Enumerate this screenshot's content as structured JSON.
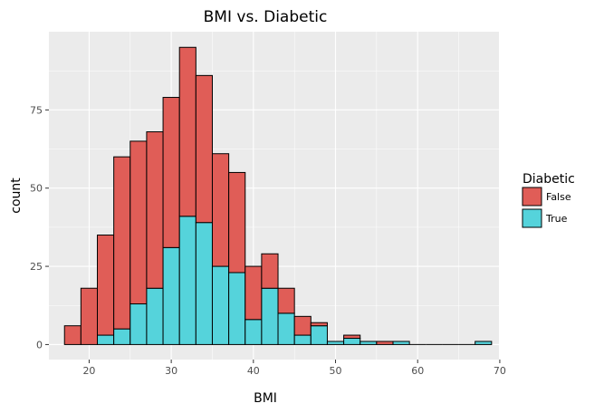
{
  "chart_data": {
    "type": "bar",
    "stacked": true,
    "title": "BMI vs. Diabetic",
    "xlabel": "BMI",
    "ylabel": "count",
    "xlim": [
      15.1,
      69.9
    ],
    "ylim": [
      -4.8,
      100
    ],
    "x_ticks": [
      20,
      30,
      40,
      50,
      60,
      70
    ],
    "y_ticks": [
      0,
      25,
      50,
      75
    ],
    "grid": true,
    "legend_position": "right",
    "legend_title": "Diabetic",
    "bin_edges": [
      17,
      19,
      21,
      23,
      25,
      27,
      29,
      31,
      33,
      35,
      37,
      39,
      41,
      43,
      45,
      47,
      49,
      51,
      53,
      55,
      57,
      59,
      61,
      63,
      65,
      67,
      69
    ],
    "series": [
      {
        "name": "False",
        "color": "#E05D57",
        "values": [
          6,
          18,
          32,
          55,
          52,
          50,
          48,
          54,
          47,
          36,
          32,
          17,
          11,
          8,
          6,
          1,
          0,
          1,
          0,
          1,
          0,
          0,
          0,
          0,
          0,
          0
        ]
      },
      {
        "name": "True",
        "color": "#55D3DB",
        "values": [
          0,
          0,
          3,
          5,
          13,
          18,
          31,
          41,
          39,
          25,
          23,
          8,
          18,
          10,
          3,
          6,
          1,
          2,
          1,
          0,
          1,
          0,
          0,
          0,
          0,
          1
        ]
      }
    ]
  },
  "colors": {
    "panel": "#EBEBEB",
    "grid_major": "#FFFFFF",
    "bar_outline": "#000000"
  }
}
